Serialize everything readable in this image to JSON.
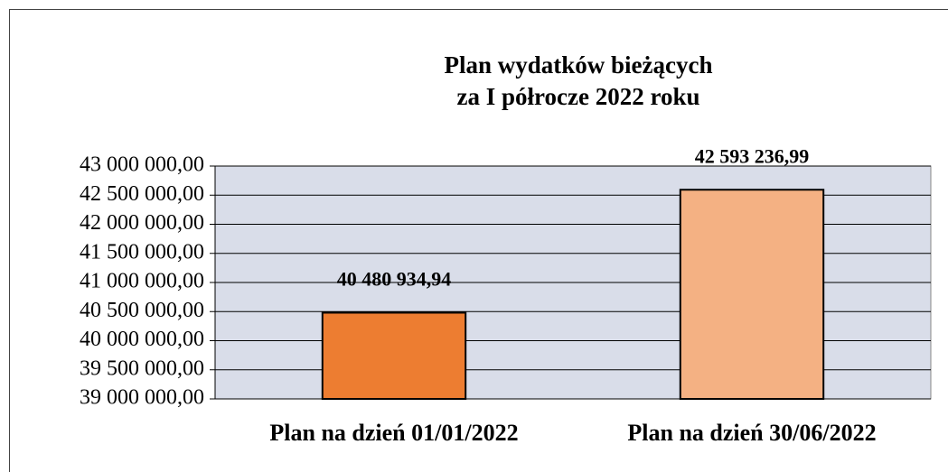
{
  "chart_data": {
    "type": "bar",
    "title": [
      "Plan wydatków bieżących",
      "za I półrocze 2022 roku"
    ],
    "categories": [
      "Plan na dzień 01/01/2022",
      "Plan na dzień 30/06/2022"
    ],
    "values": [
      40480934.94,
      42593236.99
    ],
    "value_labels": [
      "40 480 934,94",
      "42 593 236,99"
    ],
    "colors": [
      "#ed7d31",
      "#f4b183"
    ],
    "ylim": [
      39000000,
      43000000
    ],
    "yticks": [
      {
        "value": 39000000,
        "label": "39 000 000,00"
      },
      {
        "value": 39500000,
        "label": "39 500 000,00"
      },
      {
        "value": 40000000,
        "label": "40 000 000,00"
      },
      {
        "value": 40500000,
        "label": "40 500 000,00"
      },
      {
        "value": 41000000,
        "label": "41 000 000,00"
      },
      {
        "value": 41500000,
        "label": "41 500 000,00"
      },
      {
        "value": 42000000,
        "label": "42 000 000,00"
      },
      {
        "value": 42500000,
        "label": "42 500 000,00"
      },
      {
        "value": 43000000,
        "label": "43 000 000,00"
      }
    ],
    "grid": true
  }
}
